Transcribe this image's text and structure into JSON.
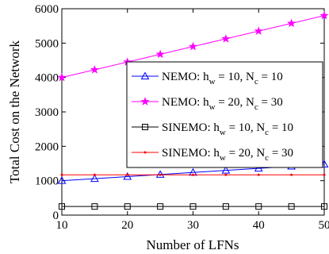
{
  "chart_data": {
    "type": "line",
    "title": "",
    "xlabel": "Number of LFNs",
    "ylabel": "Total Cost on the Network",
    "xlim": [
      10,
      50
    ],
    "ylim": [
      0,
      6000
    ],
    "x_ticks": [
      10,
      20,
      30,
      40,
      50
    ],
    "y_ticks": [
      0,
      1000,
      2000,
      3000,
      4000,
      5000,
      6000
    ],
    "grid": false,
    "legend_position": "right",
    "x": [
      10,
      15,
      20,
      25,
      30,
      35,
      40,
      45,
      50
    ],
    "series": [
      {
        "name": "NEMO: h_w = 10, N_c = 10",
        "legend": {
          "prefix": "NEMO: h",
          "sub1": "w",
          "mid": " = 10, N",
          "sub2": "c",
          "suffix": " = 10"
        },
        "color": "#0000ff",
        "marker": "triangle",
        "values": [
          1000,
          1060,
          1120,
          1180,
          1240,
          1300,
          1360,
          1420,
          1480
        ]
      },
      {
        "name": "NEMO: h_w = 20, N_c = 30",
        "legend": {
          "prefix": "NEMO: h",
          "sub1": "w",
          "mid": " = 20, N",
          "sub2": "c",
          "suffix": " = 30"
        },
        "color": "#ff00ff",
        "marker": "star",
        "values": [
          4000,
          4225,
          4450,
          4675,
          4900,
          5125,
          5350,
          5575,
          5800
        ]
      },
      {
        "name": "SINEMO: h_w = 10, N_c = 10",
        "legend": {
          "prefix": "SINEMO: h",
          "sub1": "w",
          "mid": " = 10, N",
          "sub2": "c",
          "suffix": " = 10"
        },
        "color": "#000000",
        "marker": "square",
        "values": [
          250,
          250,
          250,
          250,
          250,
          250,
          250,
          250,
          250
        ]
      },
      {
        "name": "SINEMO: h_w = 20, N_c = 30",
        "legend": {
          "prefix": "SINEMO: h",
          "sub1": "w",
          "mid": " = 20, N",
          "sub2": "c",
          "suffix": " = 30"
        },
        "color": "#ff0000",
        "marker": "dot",
        "values": [
          1170,
          1170,
          1170,
          1170,
          1170,
          1170,
          1170,
          1170,
          1170
        ]
      }
    ]
  }
}
